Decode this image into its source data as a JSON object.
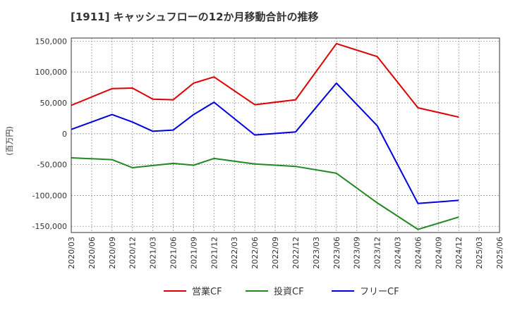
{
  "chart_data": {
    "type": "line",
    "title": "[1911]  キャッシュフローの12か月移動合計の推移",
    "ylabel": "(百万円)",
    "xlabel": "",
    "ylim": [
      -160000,
      155000
    ],
    "yticks": [
      150000,
      100000,
      50000,
      0,
      -50000,
      -100000,
      -150000
    ],
    "ytick_labels": [
      "150,000",
      "100,000",
      "50,000",
      "0",
      "-50,000",
      "-100,000",
      "-150,000"
    ],
    "categories": [
      "2020/03",
      "2020/06",
      "2020/09",
      "2020/12",
      "2021/03",
      "2021/06",
      "2021/09",
      "2021/12",
      "2022/03",
      "2022/06",
      "2022/09",
      "2022/12",
      "2023/03",
      "2023/06",
      "2023/09",
      "2023/12",
      "2024/03",
      "2024/06",
      "2024/09",
      "2024/12",
      "2025/03",
      "2025/06"
    ],
    "grid": true,
    "legend_position": "bottom",
    "series": [
      {
        "name": "営業CF",
        "color": "#dd0000",
        "values": [
          46000,
          null,
          73000,
          74000,
          56000,
          55000,
          82000,
          92000,
          null,
          47000,
          null,
          55000,
          null,
          146000,
          null,
          125000,
          null,
          42000,
          null,
          27000,
          null,
          null
        ]
      },
      {
        "name": "投資CF",
        "color": "#228822",
        "values": [
          -39000,
          null,
          -42000,
          -55000,
          null,
          -48000,
          -51000,
          -40000,
          null,
          -49000,
          null,
          -53000,
          null,
          -64000,
          null,
          -112000,
          null,
          -155000,
          null,
          -135000,
          null,
          null
        ]
      },
      {
        "name": "フリーCF",
        "color": "#0000dd",
        "values": [
          7000,
          null,
          31000,
          19000,
          4000,
          6000,
          31000,
          51000,
          null,
          -2000,
          null,
          3000,
          null,
          82000,
          null,
          13000,
          null,
          -113000,
          null,
          -108000,
          null,
          null
        ]
      }
    ]
  }
}
